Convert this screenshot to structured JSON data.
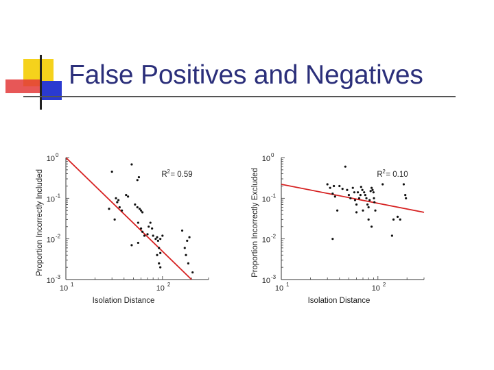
{
  "slide": {
    "title": "False Positives and Negatives"
  },
  "colors": {
    "title": "#2b2f7a",
    "fit_line": "#d62020",
    "points": "#111111",
    "logo_yellow": "#f5d21c",
    "logo_blue": "#2a3ad0",
    "logo_red": "#e33a3a"
  },
  "chart_data": [
    {
      "type": "scatter",
      "xscale": "log",
      "yscale": "log",
      "xlim": [
        10,
        300
      ],
      "ylim": [
        0.001,
        1
      ],
      "xlabel": "Isolation Distance",
      "ylabel": "Proportion Incorrectly Included",
      "x_ticks": [
        {
          "label": "10",
          "sup": "1",
          "v": 10
        },
        {
          "label": "10",
          "sup": "2",
          "v": 100
        }
      ],
      "y_ticks": [
        {
          "label": "10",
          "sup": "0",
          "v": 1
        },
        {
          "label": "10",
          "sup": "-1",
          "v": 0.1
        },
        {
          "label": "10",
          "sup": "-2",
          "v": 0.01
        },
        {
          "label": "10",
          "sup": "-3",
          "v": 0.001
        }
      ],
      "annotation": "R",
      "annotation_sup": "2",
      "annotation_rest": " = 0.59",
      "fit_line": {
        "x": [
          10,
          200
        ],
        "y": [
          1.0,
          0.001
        ]
      },
      "points": [
        [
          30,
          0.45
        ],
        [
          42,
          0.12
        ],
        [
          48,
          0.68
        ],
        [
          55,
          0.28
        ],
        [
          57,
          0.33
        ],
        [
          33,
          0.1
        ],
        [
          35,
          0.09
        ],
        [
          34,
          0.08
        ],
        [
          36,
          0.06
        ],
        [
          38,
          0.05
        ],
        [
          28,
          0.055
        ],
        [
          32,
          0.03
        ],
        [
          44,
          0.11
        ],
        [
          52,
          0.07
        ],
        [
          55,
          0.06
        ],
        [
          58,
          0.055
        ],
        [
          60,
          0.05
        ],
        [
          62,
          0.045
        ],
        [
          56,
          0.025
        ],
        [
          60,
          0.018
        ],
        [
          62,
          0.015
        ],
        [
          65,
          0.012
        ],
        [
          70,
          0.013
        ],
        [
          72,
          0.02
        ],
        [
          75,
          0.025
        ],
        [
          78,
          0.018
        ],
        [
          80,
          0.012
        ],
        [
          85,
          0.01
        ],
        [
          88,
          0.011
        ],
        [
          90,
          0.009
        ],
        [
          95,
          0.01
        ],
        [
          92,
          0.006
        ],
        [
          95,
          0.0045
        ],
        [
          88,
          0.004
        ],
        [
          92,
          0.0025
        ],
        [
          95,
          0.002
        ],
        [
          48,
          0.007
        ],
        [
          56,
          0.008
        ],
        [
          160,
          0.016
        ],
        [
          190,
          0.011
        ],
        [
          170,
          0.006
        ],
        [
          175,
          0.004
        ],
        [
          185,
          0.0025
        ],
        [
          205,
          0.0015
        ],
        [
          180,
          0.009
        ],
        [
          100,
          0.012
        ]
      ]
    },
    {
      "type": "scatter",
      "xscale": "log",
      "yscale": "log",
      "xlim": [
        10,
        300
      ],
      "ylim": [
        0.001,
        1
      ],
      "xlabel": "Isolation Distance",
      "ylabel": "Proportion Incorrectly Excluded",
      "x_ticks": [
        {
          "label": "10",
          "sup": "1",
          "v": 10
        },
        {
          "label": "10",
          "sup": "2",
          "v": 100
        }
      ],
      "y_ticks": [
        {
          "label": "10",
          "sup": "0",
          "v": 1
        },
        {
          "label": "10",
          "sup": "-1",
          "v": 0.1
        },
        {
          "label": "10",
          "sup": "-2",
          "v": 0.01
        },
        {
          "label": "10",
          "sup": "-3",
          "v": 0.001
        }
      ],
      "annotation": "R",
      "annotation_sup": "2",
      "annotation_rest": " = 0.10",
      "fit_line": {
        "x": [
          10,
          300
        ],
        "y": [
          0.22,
          0.045
        ]
      },
      "points": [
        [
          30,
          0.22
        ],
        [
          32,
          0.18
        ],
        [
          35,
          0.2
        ],
        [
          34,
          0.13
        ],
        [
          36,
          0.11
        ],
        [
          40,
          0.2
        ],
        [
          43,
          0.17
        ],
        [
          46,
          0.6
        ],
        [
          48,
          0.16
        ],
        [
          50,
          0.12
        ],
        [
          52,
          0.1
        ],
        [
          55,
          0.18
        ],
        [
          57,
          0.14
        ],
        [
          58,
          0.09
        ],
        [
          60,
          0.07
        ],
        [
          62,
          0.14
        ],
        [
          64,
          0.1
        ],
        [
          66,
          0.12
        ],
        [
          67,
          0.19
        ],
        [
          69,
          0.16
        ],
        [
          72,
          0.14
        ],
        [
          74,
          0.12
        ],
        [
          76,
          0.1
        ],
        [
          78,
          0.07
        ],
        [
          80,
          0.06
        ],
        [
          82,
          0.09
        ],
        [
          84,
          0.15
        ],
        [
          86,
          0.18
        ],
        [
          88,
          0.16
        ],
        [
          90,
          0.14
        ],
        [
          91,
          0.1
        ],
        [
          92,
          0.08
        ],
        [
          94,
          0.05
        ],
        [
          70,
          0.05
        ],
        [
          38,
          0.05
        ],
        [
          34,
          0.01
        ],
        [
          60,
          0.045
        ],
        [
          80,
          0.03
        ],
        [
          86,
          0.02
        ],
        [
          112,
          0.22
        ],
        [
          145,
          0.03
        ],
        [
          160,
          0.035
        ],
        [
          170,
          0.03
        ],
        [
          140,
          0.012
        ],
        [
          185,
          0.22
        ],
        [
          192,
          0.12
        ],
        [
          195,
          0.1
        ]
      ]
    }
  ]
}
